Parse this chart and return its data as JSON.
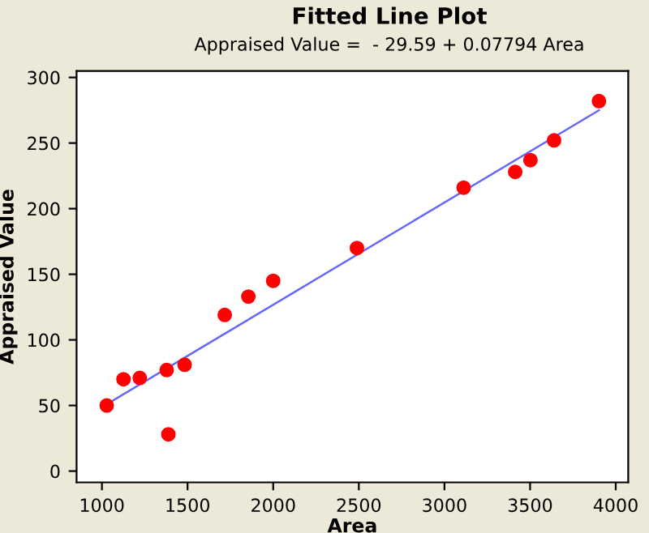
{
  "chart_data": {
    "type": "scatter",
    "title": "Fitted Line Plot",
    "subtitle": "Appraised Value =  - 29.59 + 0.07794 Area",
    "xlabel": "Area",
    "ylabel": "Appraised Value",
    "series": [
      {
        "color": "#ff0000",
        "marker": "circle",
        "x": [
          1028,
          1126,
          1221,
          1378,
          1388,
          1483,
          1717,
          1855,
          2000,
          2489,
          3112,
          3413,
          3502,
          3640,
          3902
        ],
        "values": [
          50,
          70,
          71,
          77,
          28,
          81,
          119,
          133,
          145,
          170,
          216,
          228,
          237,
          252,
          282
        ]
      },
      {
        "type": "line",
        "color": "#6666ff",
        "marker": "none",
        "line_style": "solid",
        "x": [
          1028,
          3902
        ],
        "values": [
          51,
          275
        ]
      }
    ],
    "xlim": [
      852,
      4073
    ],
    "ylim": [
      -8.6,
      305
    ],
    "xticks": [
      1000,
      1500,
      2000,
      2500,
      3000,
      3500,
      4000
    ],
    "yticks": [
      0,
      50,
      100,
      150,
      200,
      250,
      300
    ],
    "grid": false,
    "legend": false
  }
}
